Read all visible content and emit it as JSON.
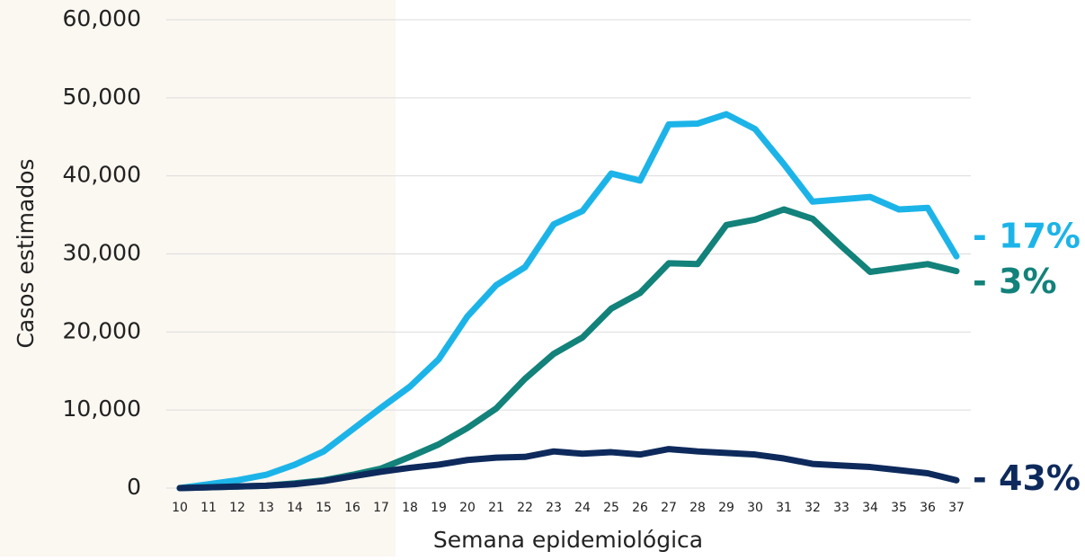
{
  "chart_data": {
    "type": "line",
    "xlabel": "Semana epidemiológica",
    "ylabel": "Casos estimados",
    "categories": [
      "10",
      "11",
      "12",
      "13",
      "14",
      "15",
      "16",
      "17",
      "18",
      "19",
      "20",
      "21",
      "22",
      "23",
      "24",
      "25",
      "26",
      "27",
      "28",
      "29",
      "30",
      "31",
      "32",
      "33",
      "34",
      "35",
      "36",
      "37"
    ],
    "series": [
      {
        "color": "#1cb4e8",
        "values": [
          0,
          500,
          1000,
          1700,
          3000,
          4700,
          7500,
          10300,
          13000,
          16500,
          22000,
          26000,
          28300,
          33800,
          35500,
          40300,
          39400,
          46600,
          46700,
          47900,
          46000,
          41500,
          36700,
          37000,
          37300,
          35700,
          35900,
          29700
        ]
      },
      {
        "color": "#12827a",
        "values": [
          0,
          100,
          200,
          300,
          600,
          1000,
          1700,
          2500,
          4000,
          5600,
          7700,
          10200,
          14000,
          17200,
          19300,
          23000,
          25000,
          28800,
          28700,
          33700,
          34400,
          35700,
          34500,
          31000,
          27700,
          28200,
          28700,
          27800
        ]
      },
      {
        "color": "#0e2a5c",
        "values": [
          0,
          100,
          200,
          300,
          500,
          900,
          1500,
          2100,
          2600,
          3000,
          3600,
          3900,
          4000,
          4700,
          4400,
          4600,
          4300,
          5000,
          4700,
          4500,
          4300,
          3800,
          3100,
          2900,
          2700,
          2300,
          1900,
          1000
        ]
      }
    ],
    "annotations": [
      "- 17%",
      "- 3%",
      "- 43%"
    ],
    "ylim": [
      0,
      60000
    ],
    "yticks": [
      0,
      {
        "value": 10000,
        "label": "10,000"
      },
      {
        "value": 20000,
        "label": "20,000"
      },
      {
        "value": 30000,
        "label": "30,000"
      },
      {
        "value": 40000,
        "label": "40,000"
      },
      {
        "value": 50000,
        "label": "50,000"
      },
      {
        "value": 60000,
        "label": "60,000"
      }
    ],
    "grid": true
  }
}
